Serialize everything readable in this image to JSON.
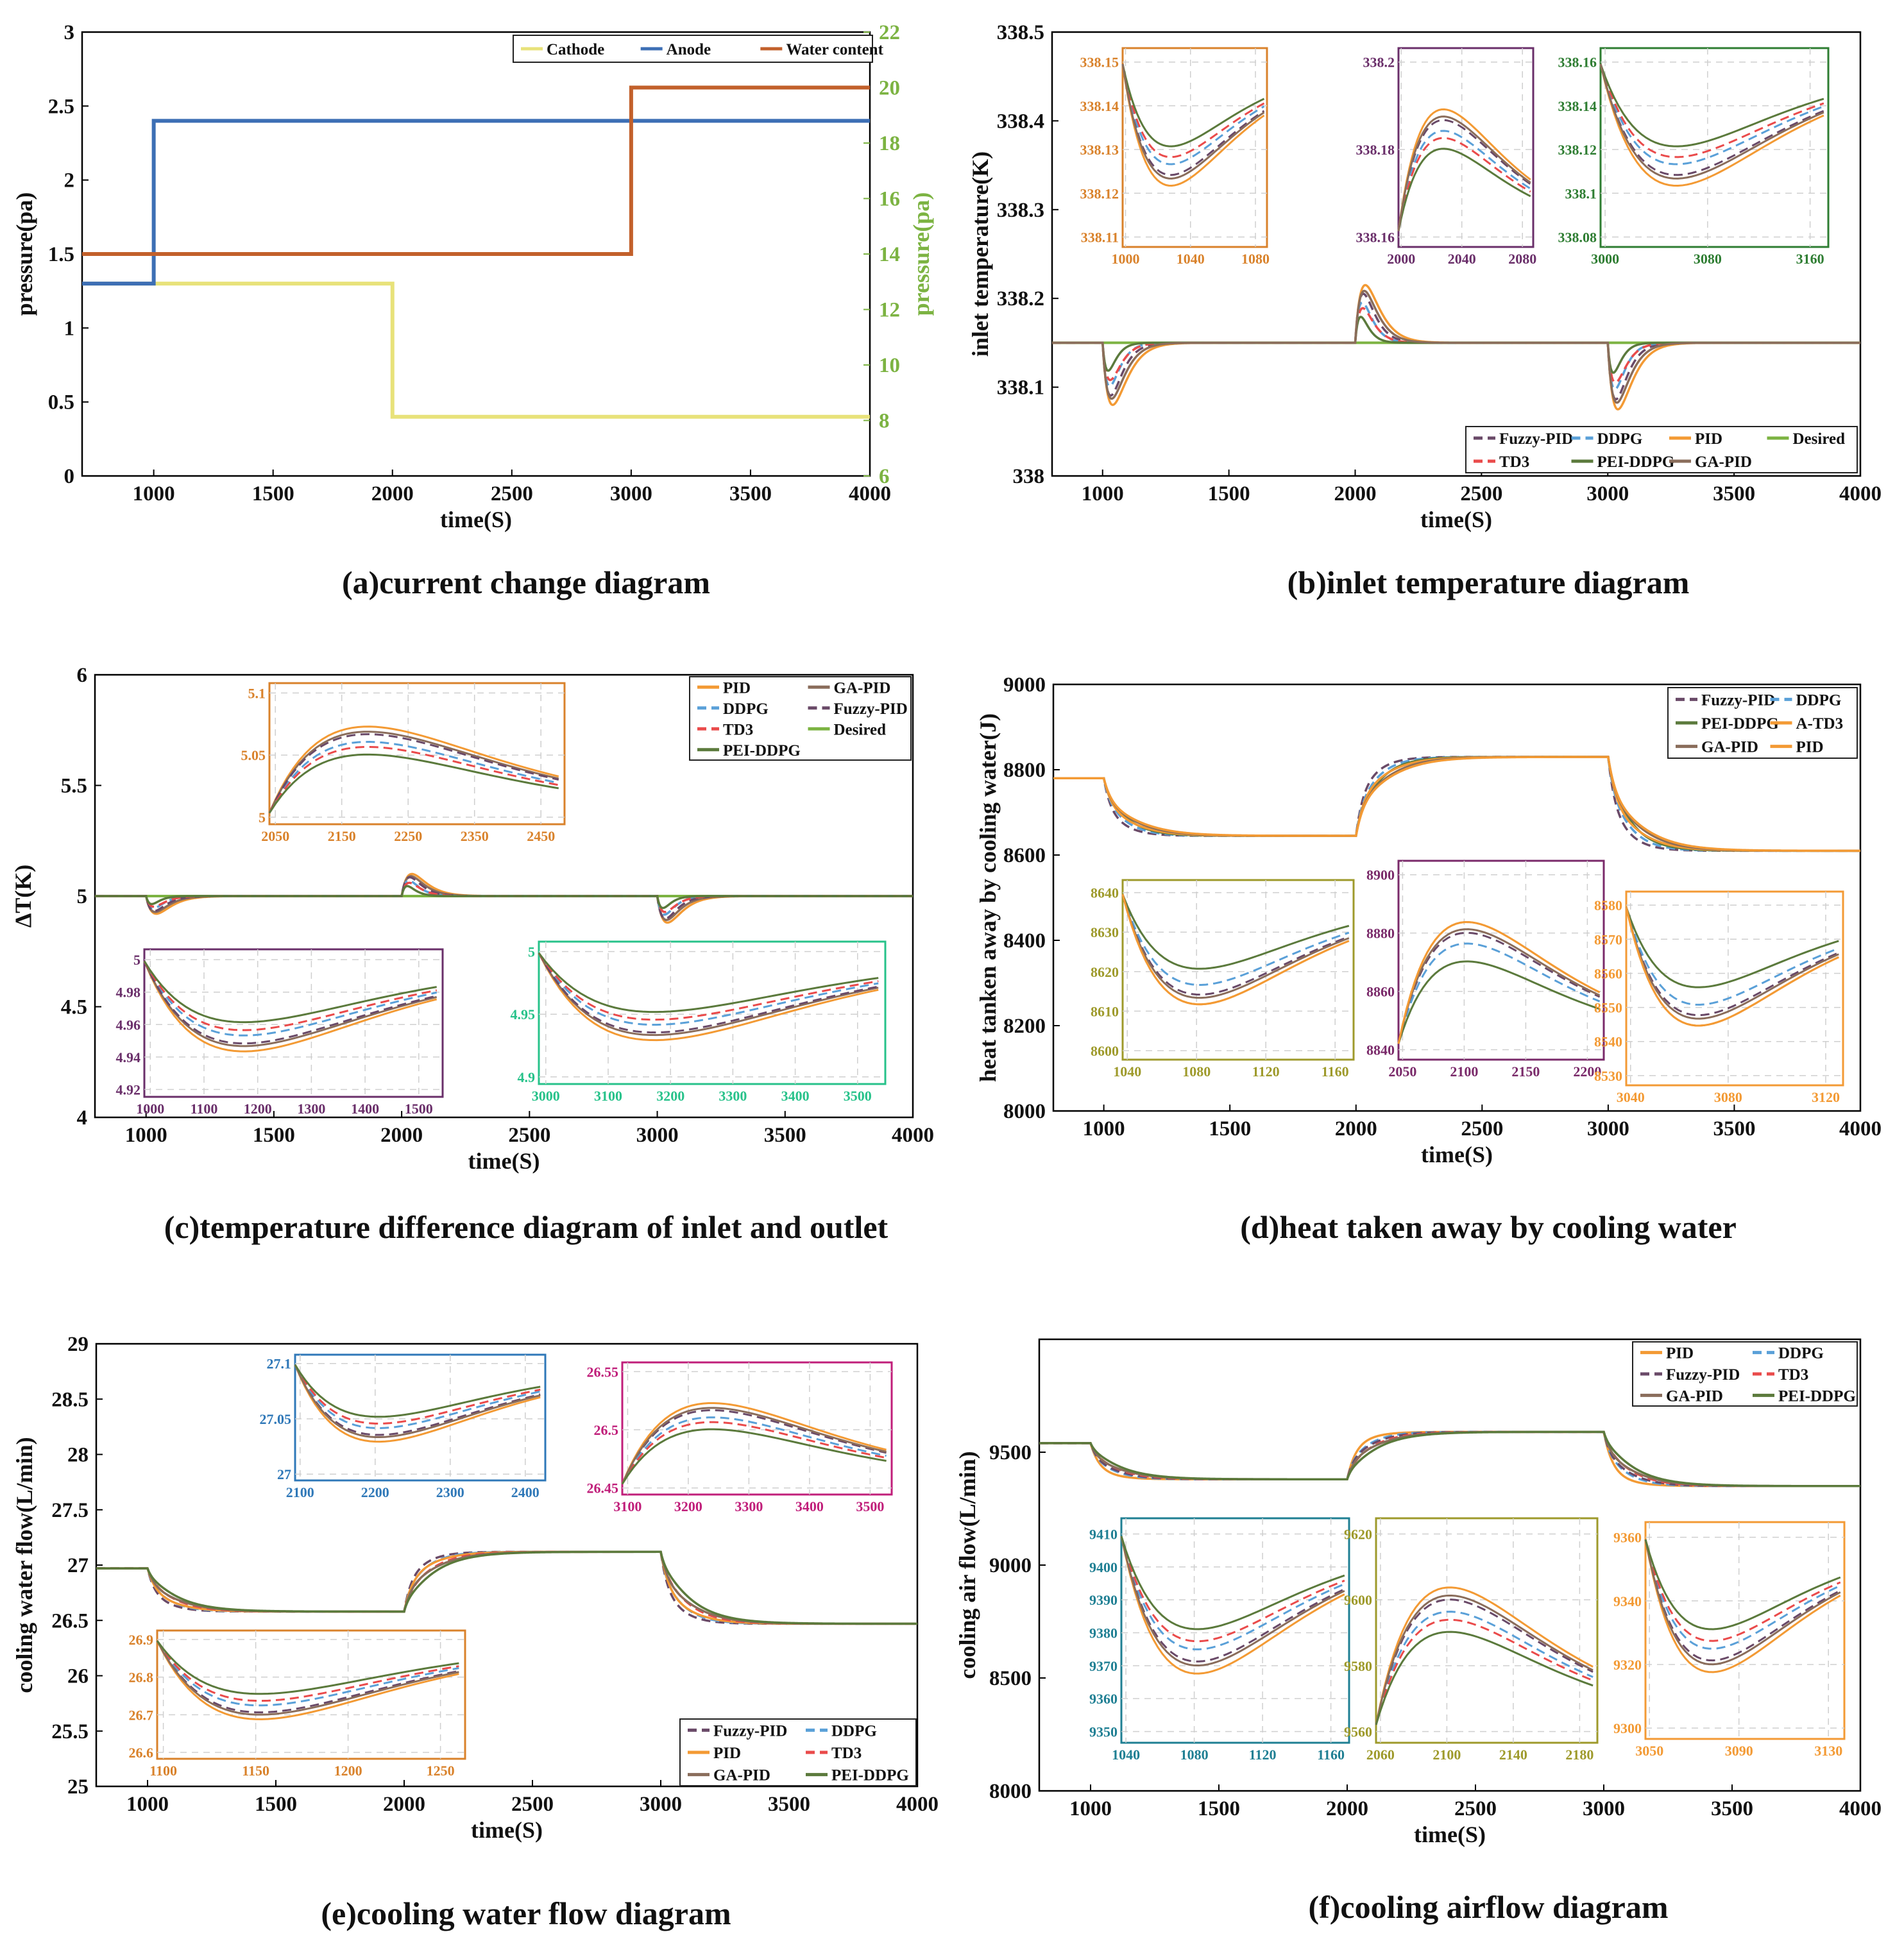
{
  "colors": {
    "fuzzy_pid": "#6a4a68",
    "ddpg": "#5aa0d8",
    "pid": "#f39a34",
    "desired": "#7cb342",
    "td3": "#ea4b4b",
    "pei_ddpg": "#5b7a3c",
    "ga_pid": "#8a6d5b",
    "cathode": "#e8e27a",
    "anode": "#3d6fb5",
    "water": "#c2602b"
  },
  "chart_data": [
    {
      "id": "a",
      "type": "line",
      "caption": "(a)current change diagram",
      "xlabel": "time(S)",
      "ylabel": "pressure(pa)",
      "ylabel_right": "pressure(pa)",
      "xlim": [
        700,
        4000
      ],
      "ylim": [
        0,
        3
      ],
      "ylim_right": [
        6,
        22
      ],
      "xticks": [
        "1000",
        "1500",
        "2000",
        "2500",
        "3000",
        "3500",
        "4000"
      ],
      "yticks": [
        "0",
        "0.5",
        "1",
        "1.5",
        "2",
        "2.5",
        "3"
      ],
      "yticks_right": [
        "6",
        "8",
        "10",
        "12",
        "14",
        "16",
        "18",
        "20",
        "22"
      ],
      "legend": [
        "Cathode",
        "Anode",
        "Water content"
      ],
      "series": [
        {
          "name": "Cathode",
          "axis": "left",
          "x": [
            700,
            2000,
            2000,
            4000
          ],
          "y": [
            1.3,
            1.3,
            0.4,
            0.4
          ]
        },
        {
          "name": "Anode",
          "axis": "left",
          "x": [
            700,
            1000,
            1000,
            4000
          ],
          "y": [
            1.3,
            1.3,
            2.4,
            2.4
          ]
        },
        {
          "name": "Water content",
          "axis": "right",
          "x": [
            700,
            3000,
            3000,
            4000
          ],
          "y": [
            14,
            14,
            20,
            20
          ]
        }
      ]
    },
    {
      "id": "b",
      "type": "line",
      "caption": "(b)inlet temperature diagram",
      "xlabel": "time(S)",
      "ylabel": "inlet temperature(K)",
      "xlim": [
        800,
        4000
      ],
      "ylim": [
        338,
        338.5
      ],
      "baseline": 338.15,
      "xticks": [
        "1000",
        "1500",
        "2000",
        "2500",
        "3000",
        "3500",
        "4000"
      ],
      "yticks": [
        "338",
        "338.1",
        "338.2",
        "338.3",
        "338.4",
        "338.5"
      ],
      "legend": [
        "Fuzzy-PID",
        "DDPG",
        "PID",
        "Desired",
        "TD3",
        "PEI-DDPG",
        "GA-PID"
      ],
      "events": [
        {
          "t": 1000,
          "peak_sign": -1,
          "amplitude": 0.07
        },
        {
          "t": 2000,
          "peak_sign": 1,
          "amplitude": 0.065
        },
        {
          "t": 3000,
          "peak_sign": -1,
          "amplitude": 0.075
        }
      ],
      "insets": [
        {
          "xticks": [
            "1000",
            "1040",
            "1080"
          ],
          "yticks": [
            "338.11",
            "338.12",
            "338.13",
            "338.14",
            "338.15"
          ]
        },
        {
          "xticks": [
            "2000",
            "2040",
            "2080"
          ],
          "yticks": [
            "338.16",
            "338.18",
            "338.2"
          ]
        },
        {
          "xticks": [
            "3000",
            "3080",
            "3160"
          ],
          "yticks": [
            "338.08",
            "338.1",
            "338.12",
            "338.14",
            "338.16"
          ]
        }
      ]
    },
    {
      "id": "c",
      "type": "line",
      "caption": "(c)temperature difference diagram of inlet and outlet",
      "xlabel": "time(S)",
      "ylabel": "ΔT(K)",
      "xlim": [
        800,
        4000
      ],
      "ylim": [
        4,
        6
      ],
      "baseline": 5,
      "xticks": [
        "1000",
        "1500",
        "2000",
        "2500",
        "3000",
        "3500",
        "4000"
      ],
      "yticks": [
        "4",
        "4.5",
        "5",
        "5.5",
        "6"
      ],
      "legend": [
        "PID",
        "GA-PID",
        "DDPG",
        "Fuzzy-PID",
        "TD3",
        "Desired",
        "PEI-DDPG"
      ],
      "events": [
        {
          "t": 1000,
          "peak_sign": -1,
          "amplitude": 0.08
        },
        {
          "t": 2000,
          "peak_sign": 1,
          "amplitude": 0.1
        },
        {
          "t": 3000,
          "peak_sign": -1,
          "amplitude": 0.12
        }
      ],
      "insets": [
        {
          "xticks": [
            "2050",
            "2150",
            "2250",
            "2350",
            "2450"
          ],
          "yticks": [
            "5",
            "5.05",
            "5.1"
          ]
        },
        {
          "xticks": [
            "1000",
            "1100",
            "1200",
            "1300",
            "1400",
            "1500"
          ],
          "yticks": [
            "4.92",
            "4.94",
            "4.96",
            "4.98",
            "5"
          ]
        },
        {
          "xticks": [
            "3000",
            "3100",
            "3200",
            "3300",
            "3400",
            "3500"
          ],
          "yticks": [
            "4.9",
            "4.95",
            "5"
          ]
        }
      ]
    },
    {
      "id": "d",
      "type": "line",
      "caption": "(d)heat taken away by cooling water",
      "xlabel": "time(S)",
      "ylabel": "heat tanken away by cooling water(J)",
      "xlim": [
        800,
        4000
      ],
      "ylim": [
        8000,
        9000
      ],
      "xticks": [
        "1000",
        "1500",
        "2000",
        "2500",
        "3000",
        "3500",
        "4000"
      ],
      "yticks": [
        "8000",
        "8200",
        "8400",
        "8600",
        "8800",
        "9000"
      ],
      "legend": [
        "Fuzzy-PID",
        "DDPG",
        "PEI-DDPG",
        "A-TD3",
        "GA-PID",
        "PID"
      ],
      "levels": [
        {
          "from": 800,
          "to": 1000,
          "value": 8780
        },
        {
          "from": 1000,
          "to": 2000,
          "value": 8645
        },
        {
          "from": 2000,
          "to": 3000,
          "value": 8830
        },
        {
          "from": 3000,
          "to": 4000,
          "value": 8610
        }
      ],
      "insets": [
        {
          "xticks": [
            "1040",
            "1080",
            "1120",
            "1160"
          ],
          "yticks": [
            "8600",
            "8610",
            "8620",
            "8630",
            "8640"
          ]
        },
        {
          "xticks": [
            "2050",
            "2100",
            "2150",
            "2200"
          ],
          "yticks": [
            "8840",
            "8860",
            "8880",
            "8900"
          ]
        },
        {
          "xticks": [
            "3040",
            "3080",
            "3120"
          ],
          "yticks": [
            "8530",
            "8540",
            "8550",
            "8560",
            "8570",
            "8580"
          ]
        }
      ]
    },
    {
      "id": "e",
      "type": "line",
      "caption": "(e)cooling water flow diagram",
      "xlabel": "time(S)",
      "ylabel": "cooling water flow(L/min)",
      "xlim": [
        800,
        4000
      ],
      "ylim": [
        25,
        29
      ],
      "xticks": [
        "1000",
        "1500",
        "2000",
        "2500",
        "3000",
        "3500",
        "4000"
      ],
      "yticks": [
        "25",
        "25.5",
        "26",
        "26.5",
        "27",
        "27.5",
        "28",
        "28.5",
        "29"
      ],
      "legend": [
        "Fuzzy-PID",
        "DDPG",
        "PID",
        "TD3",
        "GA-PID",
        "PEI-DDPG"
      ],
      "levels": [
        {
          "from": 800,
          "to": 1000,
          "value": 26.97
        },
        {
          "from": 1000,
          "to": 2000,
          "value": 26.58
        },
        {
          "from": 2000,
          "to": 3000,
          "value": 27.12
        },
        {
          "from": 3000,
          "to": 4000,
          "value": 26.47
        }
      ],
      "insets": [
        {
          "xticks": [
            "2100",
            "2200",
            "2300",
            "2400"
          ],
          "yticks": [
            "27",
            "27.05",
            "27.1"
          ]
        },
        {
          "xticks": [
            "3100",
            "3200",
            "3300",
            "3400",
            "3500"
          ],
          "yticks": [
            "26.45",
            "26.5",
            "26.55"
          ]
        },
        {
          "xticks": [
            "1100",
            "1150",
            "1200",
            "1250"
          ],
          "yticks": [
            "26.6",
            "26.7",
            "26.8",
            "26.9"
          ]
        }
      ]
    },
    {
      "id": "f",
      "type": "line",
      "caption": "(f)cooling airflow diagram",
      "xlabel": "time(S)",
      "ylabel": "cooling air flow(L/min)",
      "xlim": [
        800,
        4000
      ],
      "ylim": [
        8000,
        10000
      ],
      "xticks": [
        "1000",
        "1500",
        "2000",
        "2500",
        "3000",
        "3500",
        "4000"
      ],
      "yticks": [
        "8000",
        "8500",
        "9000",
        "9500"
      ],
      "legend": [
        "PID",
        "DDPG",
        "Fuzzy-PID",
        "TD3",
        "GA-PID",
        "PEI-DDPG"
      ],
      "levels": [
        {
          "from": 800,
          "to": 1000,
          "value": 9540
        },
        {
          "from": 1000,
          "to": 2000,
          "value": 9380
        },
        {
          "from": 2000,
          "to": 3000,
          "value": 9590
        },
        {
          "from": 3000,
          "to": 4000,
          "value": 9350
        }
      ],
      "insets": [
        {
          "xticks": [
            "1040",
            "1080",
            "1120",
            "1160"
          ],
          "yticks": [
            "9350",
            "9360",
            "9370",
            "9380",
            "9390",
            "9400",
            "9410"
          ]
        },
        {
          "xticks": [
            "2060",
            "2100",
            "2140",
            "2180"
          ],
          "yticks": [
            "9560",
            "9580",
            "9600",
            "9620"
          ]
        },
        {
          "xticks": [
            "3050",
            "3090",
            "3130"
          ],
          "yticks": [
            "9300",
            "9320",
            "9340",
            "9360"
          ]
        }
      ]
    }
  ]
}
